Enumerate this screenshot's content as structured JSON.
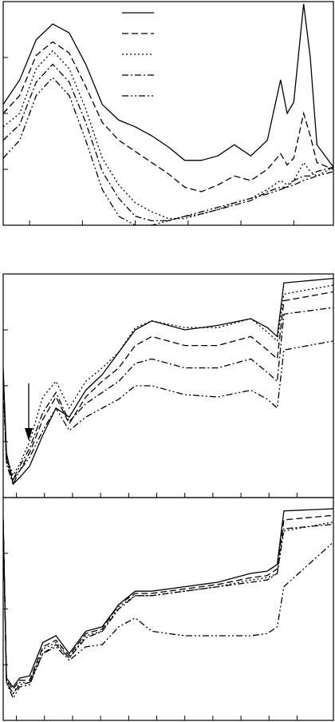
{
  "chart_data": [
    {
      "type": "line",
      "legend": "upper center",
      "x": [
        0,
        5,
        10,
        15,
        20,
        25,
        30,
        35,
        40,
        45,
        50,
        55,
        60,
        65,
        70,
        75,
        80,
        84,
        86,
        88,
        91,
        93,
        95,
        100
      ],
      "series": [
        {
          "color": "#000000",
          "dash": "solid",
          "values": [
            54,
            65,
            83,
            90,
            86,
            72,
            54,
            47,
            44,
            40,
            35,
            29,
            29,
            31,
            36,
            31,
            38,
            65,
            50,
            55,
            99,
            75,
            36,
            26
          ]
        },
        {
          "color": "#000000",
          "dash": "dashed",
          "values": [
            50,
            58,
            76,
            82,
            77,
            62,
            46,
            38,
            33,
            28,
            23,
            17,
            15,
            18,
            22,
            20,
            25,
            32,
            27,
            30,
            50,
            40,
            28,
            25
          ]
        },
        {
          "color": "#000000",
          "dash": "dotted",
          "values": [
            44,
            50,
            70,
            78,
            70,
            52,
            30,
            18,
            10,
            6,
            3,
            3,
            5,
            7,
            10,
            12,
            16,
            20,
            18,
            20,
            28,
            24,
            22,
            26
          ]
        },
        {
          "color": "#000000",
          "dash": "dashdot",
          "values": [
            38,
            45,
            64,
            72,
            64,
            46,
            24,
            12,
            4,
            2,
            2,
            4,
            5,
            7,
            9,
            11,
            15,
            17,
            17,
            20,
            22,
            22,
            24,
            26
          ]
        },
        {
          "color": "#000000",
          "dash": "dashdotdot",
          "values": [
            30,
            38,
            58,
            66,
            58,
            38,
            16,
            4,
            0,
            0,
            2,
            4,
            6,
            8,
            10,
            12,
            14,
            16,
            17,
            18,
            20,
            21,
            22,
            24
          ]
        }
      ],
      "xlim": [
        0,
        100
      ],
      "ylim": [
        0,
        100
      ],
      "xticks": [
        8,
        24,
        40,
        56,
        72,
        88
      ],
      "yticks": [
        0,
        25,
        50,
        75,
        100
      ]
    },
    {
      "type": "line",
      "x": [
        0,
        1,
        3,
        5,
        8,
        12,
        16,
        20,
        25,
        30,
        35,
        40,
        45,
        55,
        65,
        75,
        80,
        83,
        85,
        100
      ],
      "series": [
        {
          "color": "#000000",
          "dash": "solid",
          "values": [
            58,
            20,
            6,
            9,
            14,
            28,
            40,
            36,
            48,
            55,
            65,
            75,
            79,
            75,
            77,
            80,
            76,
            72,
            96,
            98
          ]
        },
        {
          "color": "#000000",
          "dash": "dashed",
          "values": [
            55,
            18,
            8,
            12,
            20,
            35,
            45,
            33,
            45,
            52,
            58,
            68,
            72,
            68,
            68,
            72,
            66,
            62,
            88,
            92
          ]
        },
        {
          "color": "#000000",
          "dash": "dotted",
          "values": [
            55,
            18,
            10,
            15,
            25,
            45,
            52,
            40,
            52,
            58,
            65,
            76,
            79,
            76,
            76,
            80,
            74,
            70,
            91,
            95
          ]
        },
        {
          "color": "#000000",
          "dash": "dashdot",
          "values": [
            52,
            16,
            8,
            14,
            22,
            38,
            47,
            34,
            42,
            47,
            52,
            60,
            62,
            58,
            58,
            62,
            56,
            52,
            82,
            85
          ]
        },
        {
          "color": "#000000",
          "dash": "dashdotdot",
          "values": [
            50,
            15,
            6,
            12,
            18,
            30,
            40,
            30,
            36,
            40,
            44,
            50,
            50,
            46,
            45,
            48,
            44,
            40,
            66,
            70
          ]
        }
      ],
      "xlim": [
        0,
        100
      ],
      "ylim": [
        0,
        100
      ],
      "xticks": [
        4,
        12.5,
        21,
        29.5,
        38,
        46.5,
        55,
        63.5,
        72,
        80.5,
        89
      ],
      "yticks": [
        0,
        25,
        50,
        75,
        100
      ]
    },
    {
      "type": "line",
      "x": [
        0,
        1,
        3,
        5,
        8,
        12,
        16,
        20,
        25,
        30,
        35,
        40,
        45,
        55,
        65,
        75,
        80,
        83,
        85,
        100
      ],
      "series": [
        {
          "color": "#000000",
          "dash": "solid",
          "values": [
            90,
            19,
            15,
            19,
            20,
            35,
            38,
            30,
            40,
            42,
            52,
            58,
            58,
            60,
            62,
            66,
            67,
            70,
            94,
            95
          ]
        },
        {
          "color": "#000000",
          "dash": "dashed",
          "values": [
            90,
            18,
            14,
            18,
            18,
            33,
            36,
            29,
            39,
            41,
            52,
            57,
            57,
            59,
            61,
            64,
            65,
            68,
            90,
            92
          ]
        },
        {
          "color": "#000000",
          "dash": "dotted",
          "values": [
            90,
            18,
            12,
            17,
            17,
            32,
            35,
            28,
            38,
            40,
            51,
            56,
            56,
            58,
            60,
            63,
            64,
            66,
            85,
            89
          ]
        },
        {
          "color": "#000000",
          "dash": "dashdot",
          "values": [
            90,
            17,
            12,
            16,
            17,
            30,
            34,
            28,
            37,
            40,
            50,
            56,
            56,
            58,
            60,
            62,
            63,
            66,
            86,
            88
          ]
        },
        {
          "color": "#000000",
          "dash": "dashdotdot",
          "values": [
            88,
            17,
            10,
            15,
            16,
            30,
            33,
            27,
            33,
            34,
            42,
            46,
            40,
            38,
            38,
            38,
            39,
            42,
            60,
            80
          ]
        }
      ],
      "xlim": [
        0,
        100
      ],
      "ylim": [
        0,
        100
      ],
      "xticks": [
        4,
        12.5,
        21,
        29.5,
        38,
        46.5,
        55,
        63.5,
        72,
        80.5,
        89
      ],
      "yticks": [
        0,
        25,
        50,
        75,
        100
      ]
    }
  ]
}
